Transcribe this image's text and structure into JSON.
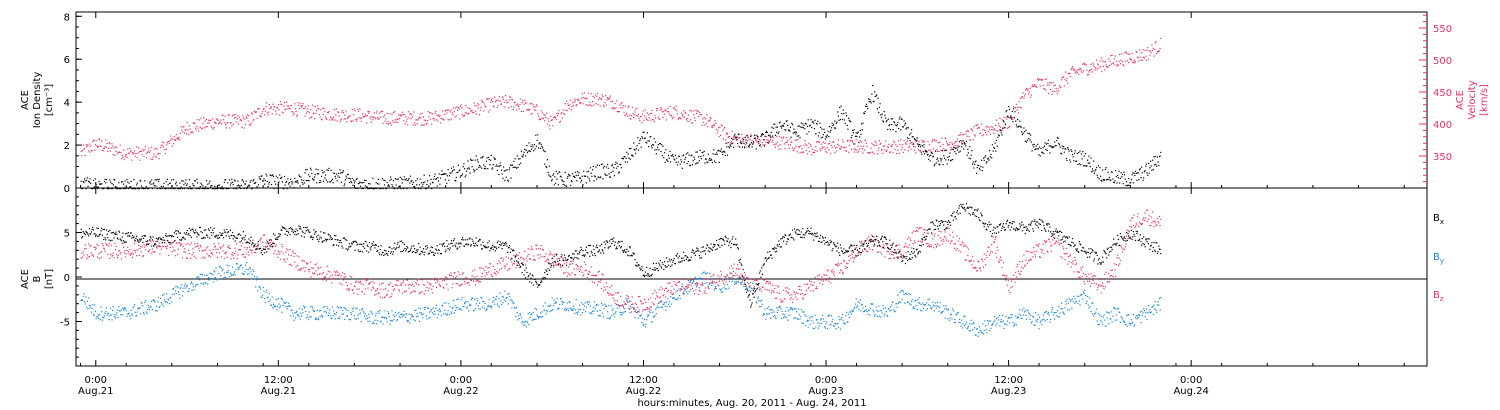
{
  "chart_data": [
    {
      "type": "scatter",
      "panel": "top",
      "ylabel_left": [
        "ACE",
        "Ion Density",
        "[cm⁻³]"
      ],
      "ylabel_right": [
        "ACE",
        "Velocity",
        "[km/s]"
      ],
      "ylim_left": [
        0,
        8.2
      ],
      "ylim_right": [
        300,
        575
      ],
      "yticks_left": [
        "0",
        "2",
        "4",
        "6",
        "8"
      ],
      "yticks_right": [
        "350",
        "400",
        "450",
        "500",
        "550"
      ],
      "series": [
        {
          "name": "Ion Density",
          "color": "#000000",
          "axis": "left",
          "x_hours": [
            -1,
            0,
            2,
            4,
            6,
            8,
            10,
            11,
            12,
            13,
            14,
            16,
            17,
            18,
            19,
            20,
            22,
            24,
            25,
            26,
            27,
            28,
            29,
            30,
            31,
            32,
            33,
            34,
            35,
            36,
            38,
            40,
            41,
            42,
            43,
            44,
            45,
            46,
            47,
            48,
            49,
            50,
            51,
            52,
            53,
            54,
            55,
            56,
            57,
            58,
            59,
            60,
            61,
            62,
            63,
            64,
            65,
            66,
            67,
            68,
            69,
            70
          ],
          "values": [
            0.2,
            0.1,
            0.1,
            0.1,
            0.1,
            0.1,
            0.1,
            0.4,
            0.3,
            0.3,
            0.6,
            0.6,
            0.2,
            0.2,
            0.2,
            0.2,
            0.3,
            0.8,
            1.2,
            1.2,
            0.6,
            1.5,
            2.3,
            0.5,
            0.4,
            0.5,
            0.8,
            0.8,
            1.5,
            2.4,
            1.2,
            1.5,
            1.5,
            2.3,
            2.1,
            2.3,
            3.0,
            2.6,
            3.0,
            2.5,
            3.6,
            2.2,
            4.5,
            2.9,
            3.0,
            2.0,
            1.4,
            1.5,
            2.2,
            0.8,
            1.8,
            3.7,
            2.6,
            1.6,
            2.2,
            1.5,
            1.4,
            0.7,
            0.5,
            0.4,
            0.8,
            1.5
          ]
        },
        {
          "name": "Velocity",
          "color": "#e8325f",
          "axis": "right",
          "x_hours": [
            -1,
            0,
            2,
            4,
            6,
            8,
            10,
            11,
            12,
            13,
            14,
            16,
            17,
            18,
            19,
            20,
            22,
            24,
            25,
            26,
            27,
            28,
            29,
            30,
            31,
            32,
            33,
            34,
            35,
            36,
            38,
            40,
            41,
            42,
            43,
            44,
            45,
            46,
            47,
            48,
            49,
            50,
            51,
            52,
            53,
            54,
            55,
            56,
            57,
            58,
            59,
            60,
            61,
            62,
            63,
            64,
            65,
            66,
            67,
            68,
            69,
            70
          ],
          "values": [
            355,
            370,
            355,
            355,
            395,
            405,
            405,
            425,
            425,
            425,
            420,
            415,
            415,
            412,
            410,
            410,
            410,
            420,
            425,
            432,
            435,
            430,
            420,
            400,
            432,
            440,
            440,
            435,
            420,
            412,
            420,
            408,
            390,
            376,
            375,
            375,
            372,
            368,
            362,
            365,
            366,
            366,
            365,
            365,
            366,
            366,
            368,
            370,
            378,
            390,
            395,
            405,
            445,
            465,
            455,
            478,
            488,
            493,
            500,
            505,
            510,
            525
          ]
        }
      ]
    },
    {
      "type": "scatter",
      "panel": "bottom",
      "ylabel": [
        "ACE",
        "B",
        "[nT]"
      ],
      "ylim": [
        -10,
        10
      ],
      "yticks": [
        "-5",
        "0",
        "5"
      ],
      "zero_line": true,
      "series": [
        {
          "name": "Bx",
          "color": "#000000",
          "x_hours": [
            -1,
            0,
            2,
            4,
            6,
            8,
            10,
            11,
            12,
            13,
            14,
            16,
            17,
            18,
            19,
            20,
            22,
            24,
            25,
            26,
            27,
            28,
            29,
            30,
            31,
            32,
            33,
            34,
            35,
            36,
            38,
            40,
            41,
            42,
            43,
            44,
            45,
            46,
            47,
            48,
            49,
            50,
            51,
            52,
            53,
            54,
            55,
            56,
            57,
            58,
            59,
            60,
            61,
            62,
            63,
            64,
            65,
            66,
            67,
            68,
            69,
            70
          ],
          "values": [
            5,
            5,
            4.5,
            4,
            5,
            5,
            4.5,
            3,
            5,
            5.5,
            5,
            4,
            3.5,
            3.5,
            3,
            3.5,
            3,
            4,
            4,
            3.5,
            3.5,
            1,
            -1,
            2,
            2,
            3,
            3,
            4,
            3,
            0.5,
            2,
            3,
            4,
            4,
            -3,
            2,
            4,
            5,
            5,
            4,
            3,
            3,
            4,
            4,
            2,
            3,
            6,
            6,
            8,
            7,
            5,
            6,
            5.5,
            6,
            5,
            4,
            3,
            2,
            4,
            5,
            4,
            3
          ]
        },
        {
          "name": "By",
          "color": "#1a86d8",
          "x_hours": [
            -1,
            0,
            2,
            4,
            6,
            8,
            10,
            11,
            12,
            13,
            14,
            16,
            17,
            18,
            19,
            20,
            22,
            24,
            25,
            26,
            27,
            28,
            29,
            30,
            31,
            32,
            33,
            34,
            35,
            36,
            38,
            40,
            41,
            42,
            43,
            44,
            45,
            46,
            47,
            48,
            49,
            50,
            51,
            52,
            53,
            54,
            55,
            56,
            57,
            58,
            59,
            60,
            61,
            62,
            63,
            64,
            65,
            66,
            67,
            68,
            69,
            70
          ],
          "values": [
            -2,
            -4,
            -4,
            -3,
            -1,
            0.5,
            1,
            -2,
            -3,
            -4,
            -4,
            -4,
            -4,
            -4.5,
            -4.5,
            -4.5,
            -4,
            -3,
            -3,
            -3,
            -2,
            -5,
            -4,
            -3,
            -3,
            -3.5,
            -3.5,
            -4,
            -3,
            -5,
            -2,
            0,
            -1,
            0,
            -1,
            -4,
            -4,
            -4,
            -5,
            -5,
            -5,
            -3,
            -3.5,
            -4,
            -2,
            -3,
            -3,
            -4,
            -5,
            -6,
            -5,
            -5,
            -4,
            -5,
            -4,
            -3,
            -2,
            -5,
            -4,
            -5,
            -4,
            -3
          ]
        },
        {
          "name": "Bz",
          "color": "#e8325f",
          "x_hours": [
            -1,
            0,
            2,
            4,
            6,
            8,
            10,
            11,
            12,
            13,
            14,
            16,
            17,
            18,
            19,
            20,
            22,
            24,
            25,
            26,
            27,
            28,
            29,
            30,
            31,
            32,
            33,
            34,
            35,
            36,
            38,
            40,
            41,
            42,
            43,
            44,
            45,
            46,
            47,
            48,
            49,
            50,
            51,
            52,
            53,
            54,
            55,
            56,
            57,
            58,
            59,
            60,
            61,
            62,
            63,
            64,
            65,
            66,
            67,
            68,
            69,
            70
          ],
          "values": [
            3,
            3,
            3,
            3.5,
            3,
            3,
            3,
            4,
            3,
            2,
            1,
            0,
            -1,
            -1,
            -1.5,
            -1,
            -1,
            0,
            0,
            1,
            1.5,
            2,
            3,
            2,
            1,
            1,
            0,
            -2,
            -3,
            -3,
            -1,
            -1,
            0,
            1,
            -1,
            -1,
            -2,
            -2,
            -1,
            0,
            1,
            3,
            4,
            3,
            3,
            5,
            4,
            5,
            3,
            1,
            4,
            -1,
            2,
            3,
            4,
            2,
            0,
            -1,
            1,
            6,
            7,
            6
          ]
        }
      ]
    }
  ],
  "xaxis": {
    "xlim_hours": [
      -1.3,
      87.5
    ],
    "ticks": [
      {
        "hour": 0,
        "time": "0:00",
        "date": "Aug.21"
      },
      {
        "hour": 12,
        "time": "12:00",
        "date": "Aug.21"
      },
      {
        "hour": 24,
        "time": "0:00",
        "date": "Aug.22"
      },
      {
        "hour": 36,
        "time": "12:00",
        "date": "Aug.22"
      },
      {
        "hour": 48,
        "time": "0:00",
        "date": "Aug.23"
      },
      {
        "hour": 60,
        "time": "12:00",
        "date": "Aug.23"
      },
      {
        "hour": 72,
        "time": "0:00",
        "date": "Aug.24"
      }
    ],
    "label": "hours:minutes, Aug. 20, 2011 - Aug. 24, 2011"
  },
  "legend": {
    "placement": "right",
    "items": [
      {
        "label": "B",
        "sub": "x",
        "color": "#000000"
      },
      {
        "label": "B",
        "sub": "y",
        "color": "#1a86d8"
      },
      {
        "label": "B",
        "sub": "z",
        "color": "#e8325f"
      }
    ]
  }
}
